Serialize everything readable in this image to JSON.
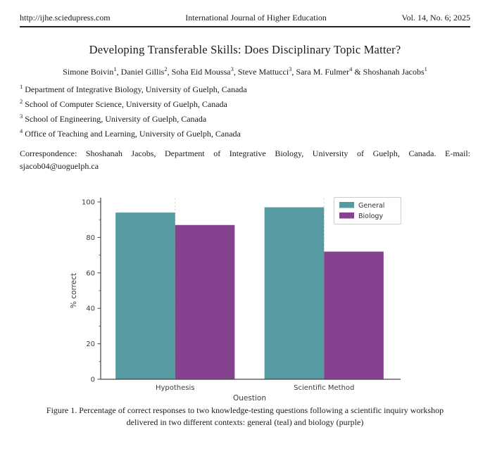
{
  "header": {
    "url": "http://ijhe.sciedupress.com",
    "journal": "International Journal of Higher Education",
    "issue": "Vol. 14, No. 6; 2025"
  },
  "article": {
    "title": "Developing Transferable Skills: Does Disciplinary Topic Matter?",
    "authors": [
      {
        "name": "Simone Boivin",
        "sup": "1"
      },
      {
        "name": "Daniel Gillis",
        "sup": "2"
      },
      {
        "name": "Soha Eid Moussa",
        "sup": "3"
      },
      {
        "name": "Steve Mattucci",
        "sup": "3"
      },
      {
        "name": "Sara M. Fulmer",
        "sup": "4"
      },
      {
        "name": "Shoshanah Jacobs",
        "sup": "1"
      }
    ],
    "affiliations": [
      {
        "sup": "1",
        "text": "Department of Integrative Biology, University of Guelph, Canada"
      },
      {
        "sup": "2",
        "text": "School of Computer Science, University of Guelph, Canada"
      },
      {
        "sup": "3",
        "text": "School of Engineering, University of Guelph, Canada"
      },
      {
        "sup": "4",
        "text": "Office of Teaching and Learning, University of Guelph, Canada"
      }
    ],
    "correspondence_text": "Correspondence: Shoshanah Jacobs, Department of Integrative Biology, University of Guelph, Canada. E-mail: ",
    "email": "sjacob04@uoguelph.ca"
  },
  "chart_data": {
    "type": "bar",
    "categories": [
      "Hypothesis",
      "Scientific Method"
    ],
    "series": [
      {
        "name": "General",
        "color": "#569aa2",
        "values": [
          94,
          97
        ]
      },
      {
        "name": "Biology",
        "color": "#85438f",
        "values": [
          87,
          72
        ]
      }
    ],
    "title": "",
    "xlabel": "Question",
    "ylabel": "% correct",
    "ylim": [
      0,
      100
    ],
    "yticks": [
      0,
      20,
      40,
      60,
      80,
      100
    ],
    "legend_position": "upper right",
    "grid": "dashed vertical lines at category centers",
    "axis_color": "#444444",
    "text_color": "#3b3b3b"
  },
  "figure_caption": {
    "line1": "Figure 1. Percentage of correct responses to two knowledge-testing questions following a scientific inquiry workshop",
    "line2": "delivered in two different contexts: general (teal) and biology (purple)"
  }
}
